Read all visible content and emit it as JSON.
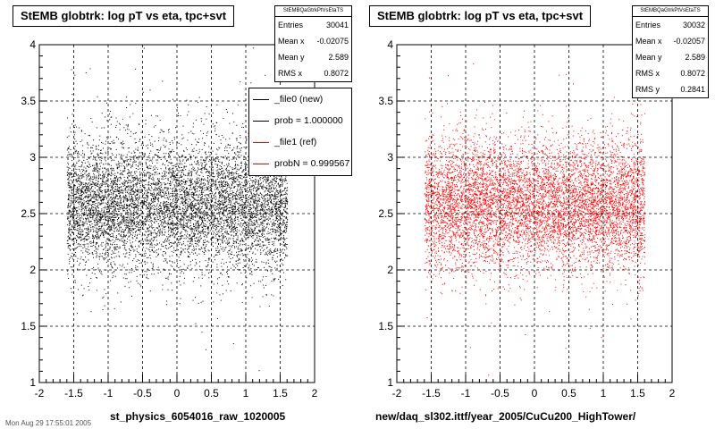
{
  "chart_data": [
    {
      "type": "scatter",
      "title": "StEMB globtrk: log pT vs eta, tpc+svt",
      "xlim": [
        -2,
        2
      ],
      "ylim": [
        1,
        4
      ],
      "xticks": [
        "-2",
        "-1.5",
        "-1",
        "-0.5",
        "0",
        "0.5",
        "1",
        "1.5",
        "2"
      ],
      "yticks": [
        "1",
        "1.5",
        "2",
        "2.5",
        "3",
        "3.5",
        "4"
      ],
      "grid": true,
      "series": [
        {
          "name": "_file0 (new)",
          "color": "#000000",
          "points": 8000,
          "x_range": [
            -1.6,
            1.6
          ],
          "y_center": 2.589,
          "y_rms": 0.2841
        }
      ],
      "stats": {
        "header": "StEMBQaGtrkPtVsEtaTS",
        "rows": [
          {
            "label": "Entries",
            "value": "30041"
          },
          {
            "label": "Mean x",
            "value": "-0.02075"
          },
          {
            "label": "Mean y",
            "value": "2.589"
          },
          {
            "label": "RMS x",
            "value": "0.8072"
          }
        ]
      },
      "legend": [
        {
          "label": "_file0 (new)",
          "color": "#000000"
        },
        {
          "label": "prob = 1.000000",
          "color": "#000000"
        },
        {
          "label": "_file1 (ref)",
          "color": "#ff0000"
        },
        {
          "label": "probN = 0.999567",
          "color": "#ff0000"
        }
      ],
      "footer": "st_physics_6054016_raw_1020005"
    },
    {
      "type": "scatter",
      "title": "StEMB globtrk: log pT vs eta, tpc+svt",
      "xlim": [
        -2,
        2
      ],
      "ylim": [
        1,
        4
      ],
      "xticks": [
        "-2",
        "-1.5",
        "-1",
        "-0.5",
        "0",
        "0.5",
        "1",
        "1.5",
        "2"
      ],
      "yticks": [
        "1",
        "1.5",
        "2",
        "2.5",
        "3",
        "3.5",
        "4"
      ],
      "grid": true,
      "series": [
        {
          "name": "_file1 (ref)",
          "color": "#ff0000",
          "points": 8000,
          "x_range": [
            -1.6,
            1.6
          ],
          "y_center": 2.589,
          "y_rms": 0.2841
        }
      ],
      "stats": {
        "header": "StEMBQaGtrkPtVsEtaTS",
        "rows": [
          {
            "label": "Entries",
            "value": "30032"
          },
          {
            "label": "Mean x",
            "value": "-0.02057"
          },
          {
            "label": "Mean y",
            "value": "2.589"
          },
          {
            "label": "RMS x",
            "value": "0.8072"
          },
          {
            "label": "RMS y",
            "value": "0.2841"
          }
        ]
      },
      "footer": "new/daq_sl302.ittf/year_2005/CuCu200_HighTower/"
    }
  ],
  "date_text": "Mon Aug 29 17:55:01 2005"
}
